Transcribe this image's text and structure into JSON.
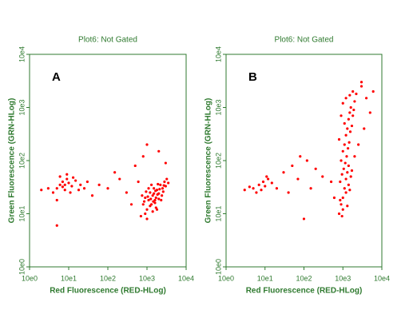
{
  "chart_data": [
    {
      "type": "scatter",
      "title": "Plot6:  Not Gated",
      "label": "A",
      "x_label": "Red Fluorescence (RED-HLog)",
      "y_label": "Green Fluorescence (GRN-HLog)",
      "log_x": true,
      "log_y": true,
      "color": "#ff0000",
      "xlim": [
        1,
        10000
      ],
      "ylim": [
        1,
        10000
      ],
      "xticks": [
        {
          "value": 1,
          "label": "10e0"
        },
        {
          "value": 10,
          "label": "10e1"
        },
        {
          "value": 100,
          "label": "10e2"
        },
        {
          "value": 1000,
          "label": "10e3"
        },
        {
          "value": 10000,
          "label": "10e4"
        }
      ],
      "yticks": [
        {
          "value": 1,
          "label": "10e0"
        },
        {
          "value": 10,
          "label": "10e1"
        },
        {
          "value": 100,
          "label": "10e2"
        },
        {
          "value": 1000,
          "label": "10e3"
        },
        {
          "value": 10000,
          "label": "10e4"
        }
      ],
      "x": [
        5,
        6,
        7,
        8,
        9,
        10,
        12,
        4,
        3,
        15,
        20,
        6,
        11,
        8,
        7,
        13,
        25,
        2,
        30,
        9,
        5,
        18,
        40,
        60,
        100,
        200,
        300,
        150,
        500,
        800,
        1000,
        2000,
        3000,
        600,
        400,
        5,
        800,
        900,
        1000,
        1100,
        1200,
        1300,
        1400,
        1500,
        1600,
        1700,
        1800,
        2000,
        2200,
        2500,
        2800,
        3000,
        900,
        1000,
        1200,
        1400,
        1600,
        1800,
        2000,
        2400,
        750,
        850,
        950,
        1100,
        1300,
        1500,
        1700,
        1900,
        2100,
        2300,
        2600,
        3200,
        700,
        1050,
        1250,
        1450,
        1650,
        1850,
        2700,
        3500
      ],
      "y": [
        30,
        35,
        40,
        28,
        45,
        38,
        33,
        25,
        30,
        42,
        35,
        50,
        25,
        35,
        32,
        48,
        30,
        28,
        40,
        55,
        18,
        28,
        22,
        35,
        30,
        45,
        25,
        60,
        80,
        120,
        200,
        150,
        90,
        40,
        15,
        6,
        15,
        20,
        12,
        18,
        25,
        15,
        22,
        30,
        18,
        20,
        28,
        24,
        35,
        30,
        40,
        33,
        10,
        8,
        14,
        11,
        16,
        12,
        19,
        22,
        22,
        17,
        26,
        30,
        35,
        24,
        13,
        36,
        29,
        18,
        26,
        45,
        9,
        21,
        19,
        17,
        27,
        23,
        34,
        38
      ]
    },
    {
      "type": "scatter",
      "title": "Plot6:  Not Gated",
      "label": "B",
      "x_label": "Red Fluorescence (RED-HLog)",
      "y_label": "Green Fluorescence (GRN-HLog)",
      "log_x": true,
      "log_y": true,
      "color": "#ff0000",
      "xlim": [
        1,
        10000
      ],
      "ylim": [
        1,
        10000
      ],
      "xticks": [
        {
          "value": 1,
          "label": "10e0"
        },
        {
          "value": 10,
          "label": "10e1"
        },
        {
          "value": 100,
          "label": "10e2"
        },
        {
          "value": 1000,
          "label": "10e3"
        },
        {
          "value": 10000,
          "label": "10e4"
        }
      ],
      "yticks": [
        {
          "value": 1,
          "label": "10e0"
        },
        {
          "value": 10,
          "label": "10e1"
        },
        {
          "value": 100,
          "label": "10e2"
        },
        {
          "value": 1000,
          "label": "10e3"
        },
        {
          "value": 10000,
          "label": "10e4"
        }
      ],
      "x": [
        5,
        7,
        8,
        9,
        10,
        12,
        6,
        4,
        15,
        20,
        11,
        30,
        50,
        80,
        120,
        200,
        300,
        500,
        150,
        70,
        40,
        3,
        100,
        600,
        800,
        900,
        1000,
        1100,
        1200,
        1300,
        1400,
        900,
        1000,
        1100,
        1200,
        1300,
        1400,
        1500,
        1600,
        1000,
        1200,
        900,
        1100,
        800,
        850,
        950,
        1050,
        1150,
        1250,
        1350,
        1450,
        1550,
        1700,
        1800,
        1900,
        2000,
        2200,
        850,
        1000,
        1200,
        1400,
        1600,
        3000,
        4000,
        5000,
        3500,
        2500,
        6000,
        3000,
        2000,
        1700,
        1500,
        1300,
        950,
        1800,
        1500
      ],
      "y": [
        30,
        35,
        28,
        40,
        33,
        45,
        25,
        32,
        38,
        30,
        50,
        60,
        80,
        120,
        100,
        70,
        50,
        40,
        30,
        45,
        25,
        28,
        8,
        20,
        10,
        15,
        20,
        30,
        45,
        60,
        80,
        100,
        150,
        200,
        300,
        400,
        600,
        800,
        1000,
        1200,
        1500,
        700,
        500,
        250,
        40,
        55,
        70,
        90,
        120,
        170,
        220,
        350,
        450,
        700,
        900,
        1300,
        1800,
        18,
        12,
        25,
        35,
        50,
        2500,
        1500,
        800,
        400,
        200,
        2000,
        3000,
        120,
        65,
        28,
        14,
        9,
        2000,
        1700
      ]
    }
  ]
}
